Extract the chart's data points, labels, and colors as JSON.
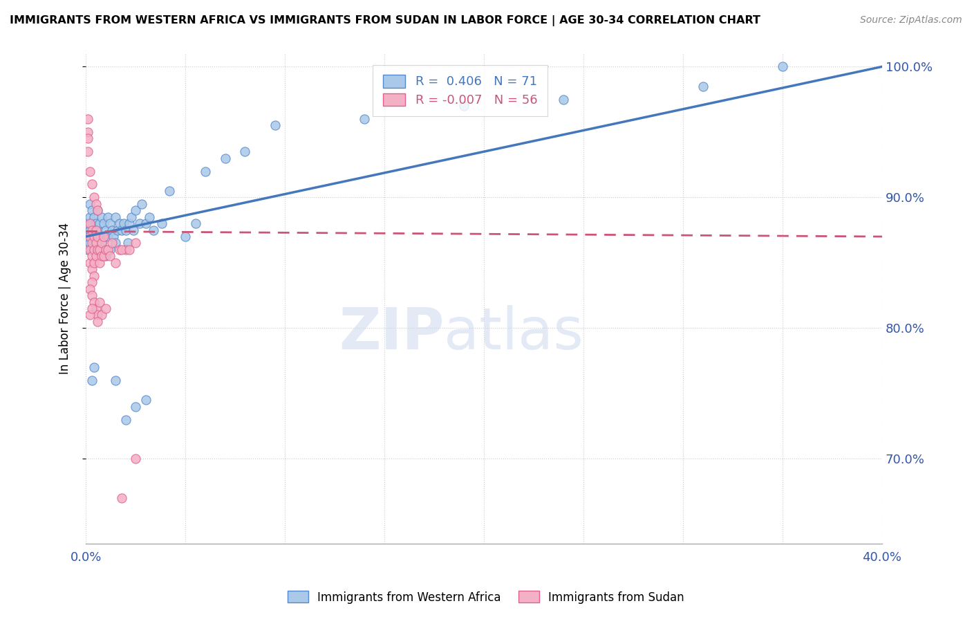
{
  "title": "IMMIGRANTS FROM WESTERN AFRICA VS IMMIGRANTS FROM SUDAN IN LABOR FORCE | AGE 30-34 CORRELATION CHART",
  "source": "Source: ZipAtlas.com",
  "ylabel": "In Labor Force | Age 30-34",
  "xlim": [
    0.0,
    0.4
  ],
  "ylim": [
    0.635,
    1.01
  ],
  "ytick_positions": [
    0.7,
    0.8,
    0.9,
    1.0
  ],
  "ytick_labels": [
    "70.0%",
    "80.0%",
    "90.0%",
    "100.0%"
  ],
  "xtick_positions": [
    0.0,
    0.05,
    0.1,
    0.15,
    0.2,
    0.25,
    0.3,
    0.35,
    0.4
  ],
  "xtick_labels": [
    "0.0%",
    "",
    "",
    "",
    "",
    "",
    "",
    "",
    "40.0%"
  ],
  "blue_R": 0.406,
  "blue_N": 71,
  "pink_R": -0.007,
  "pink_N": 56,
  "blue_color": "#aac8e8",
  "pink_color": "#f4b0c4",
  "blue_edge": "#5588cc",
  "pink_edge": "#e06090",
  "blue_line_color": "#4477bb",
  "pink_line_color": "#cc5577",
  "legend_label_blue": "Immigrants from Western Africa",
  "legend_label_pink": "Immigrants from Sudan",
  "blue_x": [
    0.001,
    0.001,
    0.001,
    0.002,
    0.002,
    0.002,
    0.002,
    0.003,
    0.003,
    0.003,
    0.003,
    0.004,
    0.004,
    0.004,
    0.005,
    0.005,
    0.005,
    0.006,
    0.006,
    0.006,
    0.007,
    0.007,
    0.007,
    0.008,
    0.008,
    0.009,
    0.009,
    0.01,
    0.01,
    0.011,
    0.011,
    0.012,
    0.012,
    0.013,
    0.014,
    0.015,
    0.015,
    0.016,
    0.017,
    0.018,
    0.019,
    0.02,
    0.021,
    0.022,
    0.023,
    0.024,
    0.025,
    0.027,
    0.028,
    0.03,
    0.032,
    0.034,
    0.038,
    0.042,
    0.05,
    0.055,
    0.06,
    0.07,
    0.08,
    0.095,
    0.14,
    0.19,
    0.24,
    0.31,
    0.35,
    0.003,
    0.004,
    0.02,
    0.025,
    0.03,
    0.015
  ],
  "blue_y": [
    0.87,
    0.86,
    0.88,
    0.885,
    0.865,
    0.895,
    0.875,
    0.88,
    0.87,
    0.89,
    0.86,
    0.875,
    0.865,
    0.885,
    0.87,
    0.88,
    0.86,
    0.865,
    0.875,
    0.89,
    0.87,
    0.86,
    0.88,
    0.865,
    0.885,
    0.87,
    0.88,
    0.855,
    0.875,
    0.87,
    0.885,
    0.86,
    0.88,
    0.875,
    0.87,
    0.865,
    0.885,
    0.875,
    0.88,
    0.875,
    0.88,
    0.875,
    0.865,
    0.88,
    0.885,
    0.875,
    0.89,
    0.88,
    0.895,
    0.88,
    0.885,
    0.875,
    0.88,
    0.905,
    0.87,
    0.88,
    0.92,
    0.93,
    0.935,
    0.955,
    0.96,
    0.97,
    0.975,
    0.985,
    1.0,
    0.76,
    0.77,
    0.73,
    0.74,
    0.745,
    0.76
  ],
  "pink_x": [
    0.001,
    0.001,
    0.001,
    0.001,
    0.002,
    0.002,
    0.002,
    0.002,
    0.003,
    0.003,
    0.003,
    0.003,
    0.004,
    0.004,
    0.004,
    0.005,
    0.005,
    0.005,
    0.006,
    0.006,
    0.007,
    0.007,
    0.008,
    0.008,
    0.009,
    0.009,
    0.01,
    0.011,
    0.012,
    0.013,
    0.015,
    0.017,
    0.02,
    0.025,
    0.002,
    0.003,
    0.004,
    0.005,
    0.006,
    0.004,
    0.003,
    0.002,
    0.003,
    0.004,
    0.005,
    0.006,
    0.007,
    0.002,
    0.003,
    0.018,
    0.022,
    0.008,
    0.01,
    0.006,
    0.025,
    0.018
  ],
  "pink_y": [
    0.96,
    0.95,
    0.945,
    0.935,
    0.87,
    0.88,
    0.86,
    0.85,
    0.865,
    0.875,
    0.855,
    0.845,
    0.86,
    0.87,
    0.85,
    0.865,
    0.875,
    0.855,
    0.86,
    0.87,
    0.86,
    0.85,
    0.855,
    0.865,
    0.855,
    0.87,
    0.86,
    0.86,
    0.855,
    0.865,
    0.85,
    0.86,
    0.86,
    0.865,
    0.92,
    0.91,
    0.9,
    0.895,
    0.89,
    0.84,
    0.835,
    0.83,
    0.825,
    0.82,
    0.815,
    0.81,
    0.82,
    0.81,
    0.815,
    0.86,
    0.86,
    0.81,
    0.815,
    0.805,
    0.7,
    0.67
  ],
  "blue_trend_x0": 0.0,
  "blue_trend_y0": 0.87,
  "blue_trend_x1": 0.4,
  "blue_trend_y1": 1.0,
  "pink_trend_x0": 0.0,
  "pink_trend_y0": 0.874,
  "pink_trend_x1": 0.4,
  "pink_trend_y1": 0.87
}
